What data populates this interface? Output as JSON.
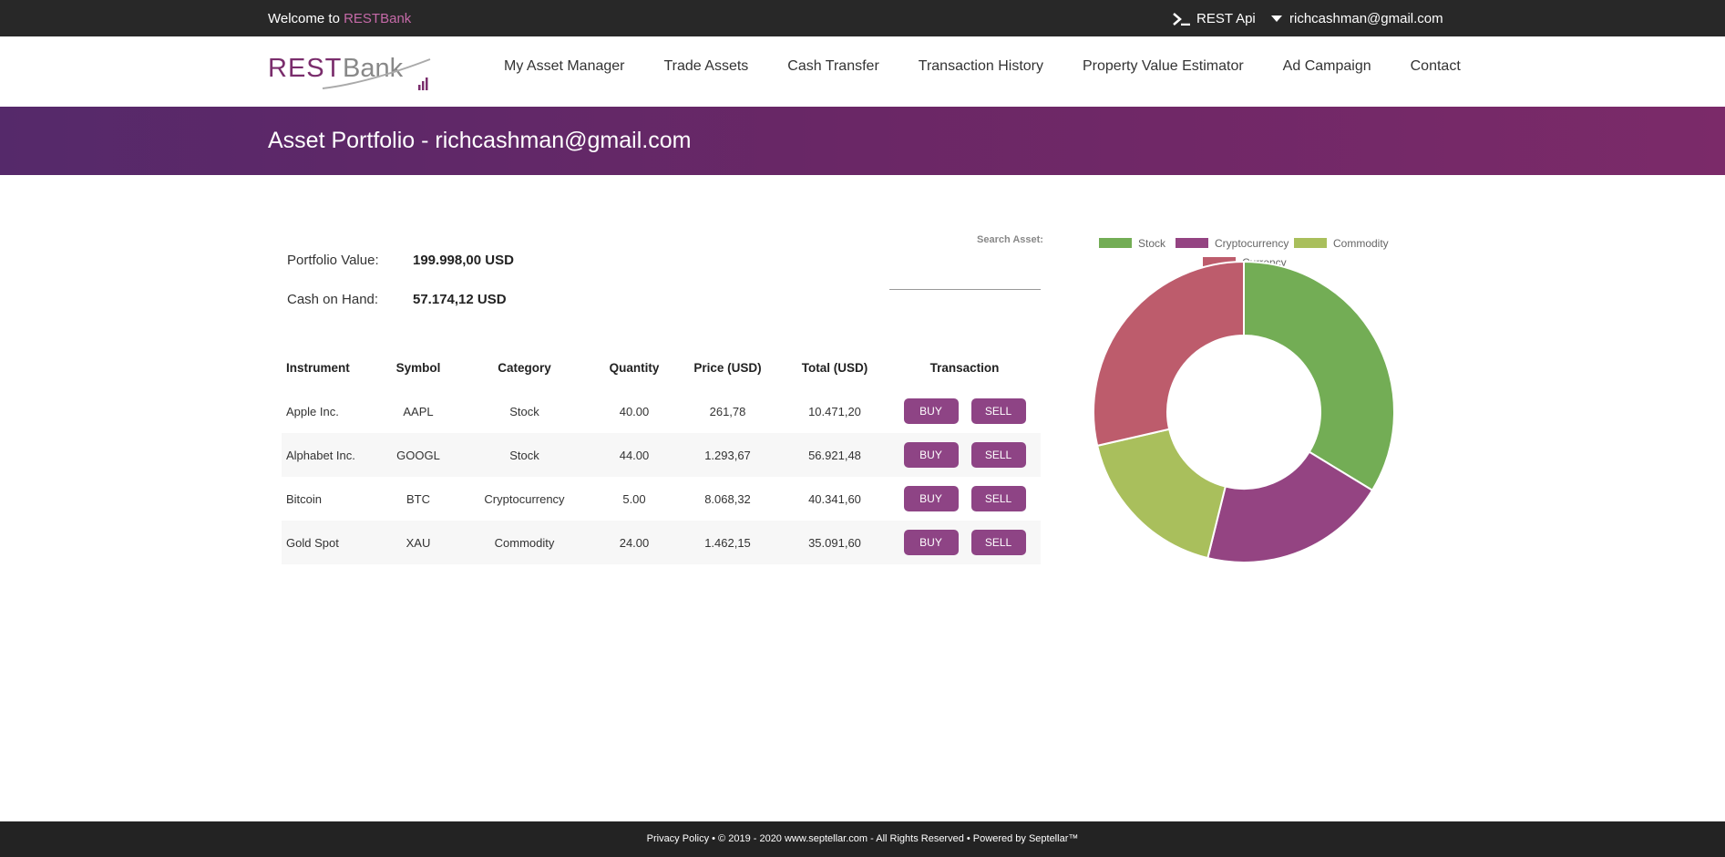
{
  "topbar": {
    "welcome_prefix": "Welcome to ",
    "brand": "RESTBank",
    "rest_api": "REST Api",
    "user_email": "richcashman@gmail.com"
  },
  "logo": {
    "part1": "REST",
    "part2": "Bank"
  },
  "nav": {
    "items": [
      "My Asset Manager",
      "Trade Assets",
      "Cash Transfer",
      "Transaction History",
      "Property Value Estimator",
      "Ad Campaign",
      "Contact"
    ]
  },
  "banner": {
    "title": "Asset Portfolio - richcashman@gmail.com"
  },
  "summary": {
    "portfolio_label": "Portfolio Value:",
    "portfolio_value": "199.998,00 USD",
    "cash_label": "Cash on Hand:",
    "cash_value": "57.174,12 USD"
  },
  "search": {
    "label": "Search Asset:",
    "value": ""
  },
  "table": {
    "headers": [
      "Instrument",
      "Symbol",
      "Category",
      "Quantity",
      "Price (USD)",
      "Total (USD)",
      "Transaction"
    ],
    "buy_label": "BUY",
    "sell_label": "SELL",
    "rows": [
      [
        "Apple Inc.",
        "AAPL",
        "Stock",
        "40.00",
        "261,78",
        "10.471,20"
      ],
      [
        "Alphabet Inc.",
        "GOOGL",
        "Stock",
        "44.00",
        "1.293,67",
        "56.921,48"
      ],
      [
        "Bitcoin",
        "BTC",
        "Cryptocurrency",
        "5.00",
        "8.068,32",
        "40.341,60"
      ],
      [
        "Gold Spot",
        "XAU",
        "Commodity",
        "24.00",
        "1.462,15",
        "35.091,60"
      ]
    ]
  },
  "chart_data": {
    "type": "pie",
    "categories": [
      "Stock",
      "Cryptocurrency",
      "Commodity",
      "Currency"
    ],
    "values": [
      67392.68,
      40341.6,
      35091.6,
      57174.12
    ],
    "colors": [
      "#73ad55",
      "#944482",
      "#a9bf5c",
      "#bd5c6c"
    ],
    "legend": "top"
  },
  "footer": {
    "text": "Privacy Policy • © 2019 - 2020 www.septellar.com - All Rights Reserved • Powered by Septellar™"
  }
}
